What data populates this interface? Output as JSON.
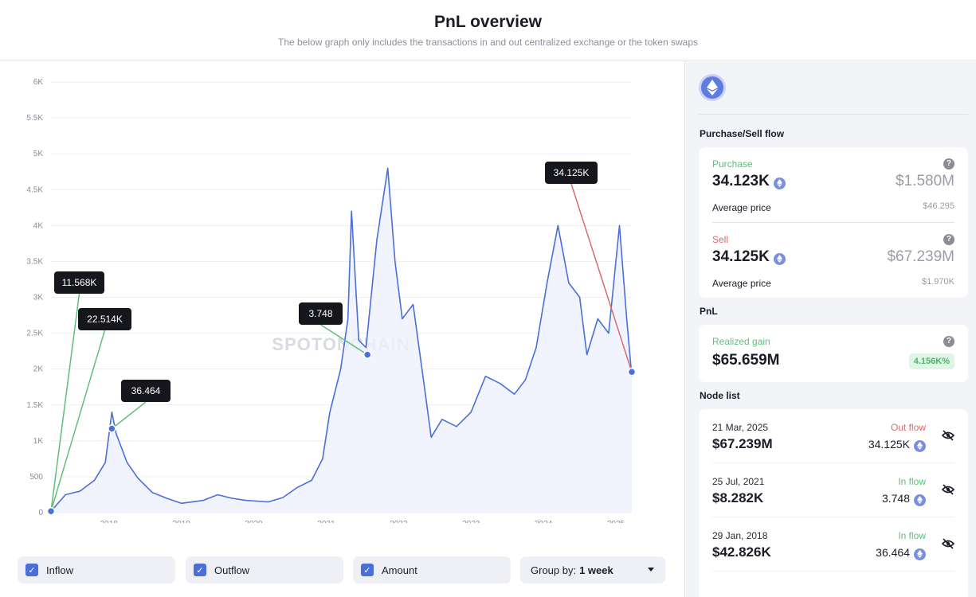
{
  "header": {
    "title": "PnL overview",
    "subtitle": "The below graph only includes the transactions in and out centralized exchange or the token swaps"
  },
  "colors": {
    "line": "#4a6fd6",
    "inflow": "#5fbf7a",
    "outflow": "#d96b6b"
  },
  "chart_data": {
    "type": "line",
    "y_ticks": [
      "0",
      "500",
      "1K",
      "1.5K",
      "2K",
      "2.5K",
      "3K",
      "3.5K",
      "4K",
      "4.5K",
      "5K",
      "5.5K",
      "6K"
    ],
    "x_ticks": [
      "2018",
      "2019",
      "2020",
      "2021",
      "2022",
      "2023",
      "2024",
      "2025"
    ],
    "ylim": [
      0,
      6000
    ],
    "grid": true,
    "series": [
      {
        "x": [
          2017.2,
          2017.4,
          2017.6,
          2017.8,
          2017.95,
          2018.04,
          2018.1,
          2018.25,
          2018.4,
          2018.6,
          2018.8,
          2019.0,
          2019.3,
          2019.5,
          2019.7,
          2019.9,
          2020.2,
          2020.4,
          2020.6,
          2020.8,
          2020.95,
          2021.05,
          2021.2,
          2021.3,
          2021.35,
          2021.45,
          2021.55,
          2021.7,
          2021.85,
          2021.95,
          2022.05,
          2022.2,
          2022.35,
          2022.45,
          2022.6,
          2022.8,
          2023.0,
          2023.2,
          2023.4,
          2023.6,
          2023.75,
          2023.9,
          2024.05,
          2024.2,
          2024.35,
          2024.5,
          2024.6,
          2024.75,
          2024.9,
          2024.95,
          2025.05,
          2025.15,
          2025.22
        ],
        "y": [
          20,
          250,
          300,
          450,
          700,
          1400,
          1100,
          700,
          480,
          280,
          200,
          130,
          170,
          250,
          200,
          170,
          150,
          210,
          350,
          450,
          750,
          1400,
          2000,
          2700,
          4200,
          2400,
          2300,
          3800,
          4800,
          3500,
          2700,
          2900,
          1800,
          1050,
          1300,
          1200,
          1400,
          1900,
          1800,
          1650,
          1850,
          2300,
          3200,
          4000,
          3200,
          3000,
          2200,
          2700,
          2500,
          3000,
          4000,
          2700,
          1900
        ]
      }
    ],
    "callouts": [
      {
        "label": "11.568K",
        "x": 2017.2,
        "y": 20
      },
      {
        "label": "22.514K",
        "x": 2017.2,
        "y": 20
      },
      {
        "label": "36.464",
        "x": 2018.04,
        "y": 1170
      },
      {
        "label": "3.748",
        "x": 2021.57,
        "y": 2200
      },
      {
        "label": "34.125K",
        "x": 2025.22,
        "y": 1960
      }
    ],
    "watermark": "SPOTONCHAIN"
  },
  "controls": {
    "inflow_label": "Inflow",
    "outflow_label": "Outflow",
    "amount_label": "Amount",
    "groupby_label": "Group by:",
    "groupby_value": "1 week"
  },
  "sidebar": {
    "flow_title": "Purchase/Sell flow",
    "purchase": {
      "label": "Purchase",
      "amount": "34.123K",
      "usd": "$1.580M",
      "avg_label": "Average price",
      "avg_value": "$46.295"
    },
    "sell": {
      "label": "Sell",
      "amount": "34.125K",
      "usd": "$67.239M",
      "avg_label": "Average price",
      "avg_value": "$1.970K"
    },
    "pnl_title": "PnL",
    "pnl": {
      "label": "Realized gain",
      "value": "$65.659M",
      "percent": "4.156K%"
    },
    "node_title": "Node list",
    "nodes": [
      {
        "date": "21 Mar, 2025",
        "usd": "$67.239M",
        "flow": "Out flow",
        "amount": "34.125K"
      },
      {
        "date": "25 Jul, 2021",
        "usd": "$8.282K",
        "flow": "In flow",
        "amount": "3.748"
      },
      {
        "date": "29 Jan, 2018",
        "usd": "$42.826K",
        "flow": "In flow",
        "amount": "36.464"
      }
    ]
  }
}
